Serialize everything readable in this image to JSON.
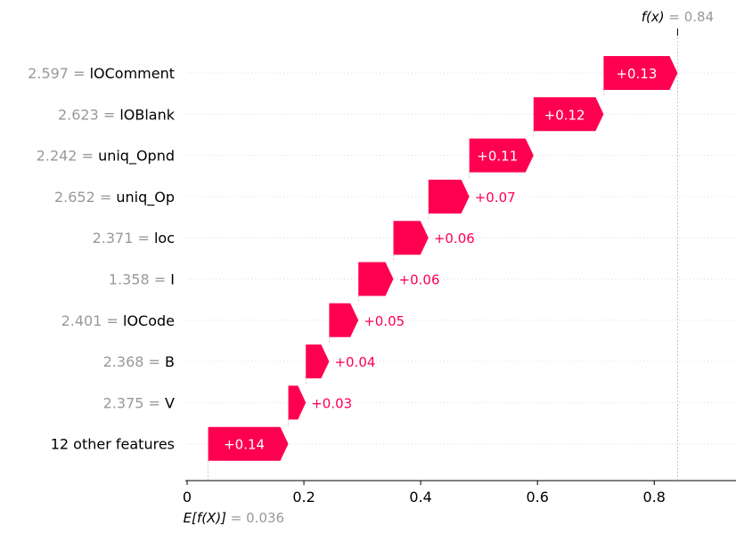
{
  "chart_data": {
    "type": "waterfall",
    "base_value_label": "E[f(X)]",
    "base_value_text": "= 0.036",
    "base_value": 0.036,
    "output_label": "f(x)",
    "output_value_text": "= 0.84",
    "output_value": 0.84,
    "xlim": [
      0,
      0.94
    ],
    "xticks": [
      0,
      0.2,
      0.4,
      0.6,
      0.8
    ],
    "xtick_labels": [
      "0",
      "0.2",
      "0.4",
      "0.6",
      "0.8"
    ],
    "features": [
      {
        "value": "2.597 =",
        "name": "lOComment",
        "contribution": 0.13,
        "label": "+0.13",
        "start": 0.7133,
        "end": 0.84
      },
      {
        "value": "2.623 =",
        "name": "lOBlank",
        "contribution": 0.12,
        "label": "+0.12",
        "start": 0.5933,
        "end": 0.7133
      },
      {
        "value": "2.242 =",
        "name": "uniq_Opnd",
        "contribution": 0.11,
        "label": "+0.11",
        "start": 0.4833,
        "end": 0.5933
      },
      {
        "value": "2.652 =",
        "name": "uniq_Op",
        "contribution": 0.07,
        "label": "+0.07",
        "start": 0.4133,
        "end": 0.4833
      },
      {
        "value": "2.371 =",
        "name": "loc",
        "contribution": 0.06,
        "label": "+0.06",
        "start": 0.3533,
        "end": 0.4133
      },
      {
        "value": "1.358 =",
        "name": "I",
        "contribution": 0.06,
        "label": "+0.06",
        "start": 0.2933,
        "end": 0.3533
      },
      {
        "value": "2.401 =",
        "name": "lOCode",
        "contribution": 0.05,
        "label": "+0.05",
        "start": 0.2433,
        "end": 0.2933
      },
      {
        "value": "2.368 =",
        "name": "B",
        "contribution": 0.04,
        "label": "+0.04",
        "start": 0.2033,
        "end": 0.2433
      },
      {
        "value": "2.375 =",
        "name": "V",
        "contribution": 0.03,
        "label": "+0.03",
        "start": 0.1733,
        "end": 0.2033
      },
      {
        "value": "",
        "name": "12 other features",
        "contribution": 0.14,
        "label": "+0.14",
        "start": 0.036,
        "end": 0.1733
      }
    ],
    "colors": {
      "positive": "#ff0051",
      "label_gray": "#999999",
      "text": "#000000",
      "grid": "#dddddd",
      "connector": "#bbbbbb"
    }
  }
}
